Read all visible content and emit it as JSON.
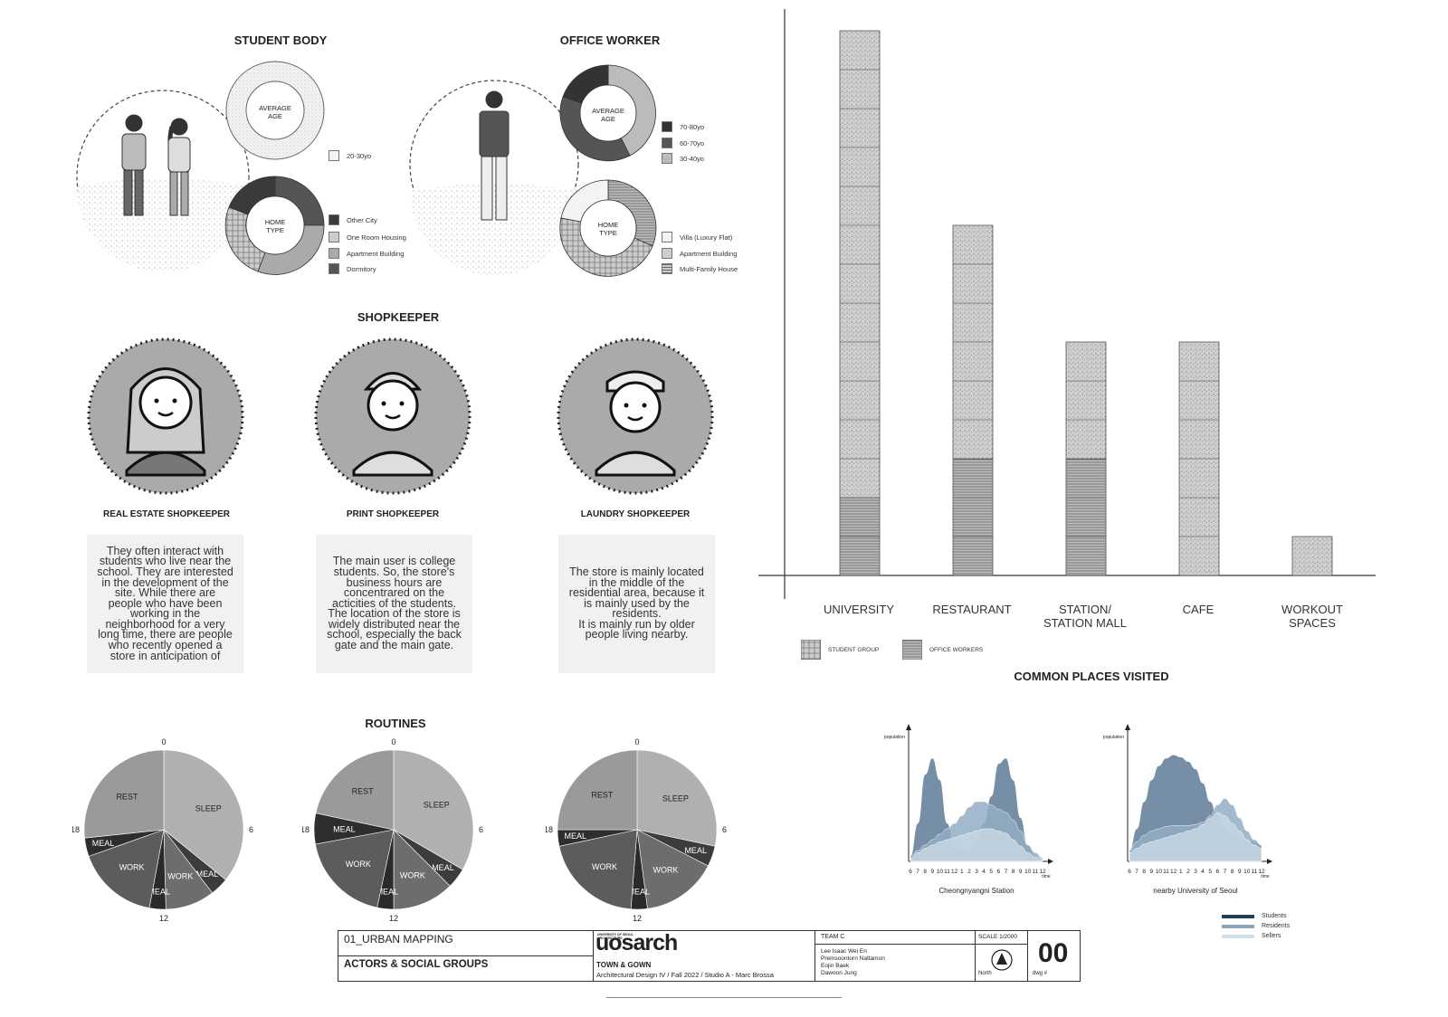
{
  "student_body": {
    "title": "STUDENT BODY",
    "avg_age_label": "AVERAGE AGE",
    "avg_age_legend": [
      "20-30yo"
    ],
    "home_type_label": "HOME TYPE",
    "home_type_legend": [
      "Other City",
      "One Room Housing",
      "Apartment Building",
      "Dormitory"
    ]
  },
  "office_worker": {
    "title": "OFFICE WORKER",
    "avg_age_label": "AVERAGE AGE",
    "avg_age_legend": [
      "70-80yo",
      "60-70yo",
      "30-40yo"
    ],
    "home_type_label": "HOME TYPE",
    "home_type_legend": [
      "Villa (Luxury Flat)",
      "Apartment Building",
      "Multi-Family House"
    ]
  },
  "shopkeeper": {
    "title": "SHOPKEEPER",
    "roles": [
      {
        "name": "REAL ESTATE SHOPKEEPER",
        "desc": "They often interact with\nstudents who live near the\nschool. They are interested\nin the development of the\nsite. While there are\npeople who have been\nworking in the\nneighborhood for a very\nlong time, there are people\nwho recently opened a\nstore in anticipation of"
      },
      {
        "name": "PRINT SHOPKEEPER",
        "desc": "The main user is college\nstudents. So, the store's\nbusiness hours are\nconcentrared on the\nacticities of the students.\nThe location of the store is\nwidely distributed near the\nschool, especially the back\ngate and the main gate."
      },
      {
        "name": "LAUNDRY SHOPKEEPER",
        "desc": "The store is mainly located\nin the middle of the\nresidential area, because it\nis mainly used by the\nresidents.\nIt is mainly run by older\npeople living nearby."
      }
    ]
  },
  "routines": {
    "title": "ROUTINES",
    "hour_labels": [
      "0",
      "6",
      "12",
      "18"
    ]
  },
  "chart_data": [
    {
      "type": "bar",
      "title": "COMMON PLACES VISITED",
      "categories": [
        "UNIVERSITY",
        "RESTAURANT",
        "STATION/\nSTATION MALL",
        "CAFE",
        "WORKOUT\nSPACES"
      ],
      "series": [
        {
          "name": "STUDENT GROUP",
          "values": [
            12,
            6,
            3,
            6,
            1
          ]
        },
        {
          "name": "OFFICE WORKERS",
          "values": [
            2,
            3,
            3,
            0,
            0
          ]
        }
      ],
      "stacked": true,
      "ylim": [
        0,
        15
      ]
    },
    {
      "type": "pie",
      "title": "",
      "labels": [
        "SLEEP",
        "MEAL",
        "WORK",
        "MEAL",
        "WORK",
        "MEAL",
        "REST"
      ],
      "values": [
        8.6,
        0.9,
        2.4,
        0.8,
        4.0,
        0.9,
        6.4
      ]
    },
    {
      "type": "pie",
      "title": "",
      "labels": [
        "SLEEP",
        "MEAL",
        "WORK",
        "MEAL",
        "WORK",
        "MEAL",
        "REST"
      ],
      "values": [
        8.0,
        1.0,
        3.0,
        0.8,
        4.5,
        1.5,
        5.2
      ]
    },
    {
      "type": "pie",
      "title": "",
      "labels": [
        "SLEEP",
        "MEAL",
        "WORK",
        "MEAL",
        "WORK",
        "MEAL",
        "REST"
      ],
      "values": [
        6.8,
        1.0,
        3.7,
        0.8,
        4.9,
        0.8,
        6.0
      ]
    },
    {
      "type": "area",
      "title": "Cheongnyangni Station",
      "xlabel": "time",
      "ylabel": "population",
      "categories": [
        "6",
        "7",
        "8",
        "9",
        "10",
        "11",
        "12",
        "1",
        "2",
        "3",
        "4",
        "5",
        "6",
        "7",
        "8",
        "9",
        "10",
        "11",
        "12"
      ],
      "series": [
        {
          "name": "Students",
          "values": [
            5,
            35,
            80,
            95,
            75,
            35,
            15,
            10,
            12,
            20,
            35,
            60,
            90,
            95,
            75,
            40,
            15,
            5,
            3
          ]
        },
        {
          "name": "Residents",
          "values": [
            5,
            10,
            15,
            20,
            25,
            30,
            35,
            42,
            50,
            55,
            55,
            52,
            48,
            45,
            38,
            28,
            15,
            8,
            3
          ]
        },
        {
          "name": "Sellers",
          "values": [
            3,
            8,
            12,
            15,
            18,
            20,
            22,
            24,
            26,
            28,
            30,
            30,
            28,
            26,
            20,
            14,
            8,
            4,
            2
          ]
        }
      ]
    },
    {
      "type": "area",
      "title": "nearby University of Seoul",
      "xlabel": "time",
      "ylabel": "population",
      "categories": [
        "6",
        "7",
        "8",
        "9",
        "10",
        "11",
        "12",
        "1",
        "2",
        "3",
        "4",
        "5",
        "6",
        "7",
        "8",
        "9",
        "10",
        "11",
        "12"
      ],
      "series": [
        {
          "name": "Students",
          "values": [
            10,
            30,
            55,
            75,
            88,
            95,
            98,
            96,
            92,
            85,
            72,
            55,
            42,
            32,
            26,
            22,
            20,
            18,
            15
          ]
        },
        {
          "name": "Residents",
          "values": [
            10,
            18,
            24,
            28,
            30,
            32,
            33,
            33,
            33,
            34,
            36,
            42,
            52,
            58,
            52,
            40,
            28,
            20,
            15
          ]
        },
        {
          "name": "Sellers",
          "values": [
            8,
            12,
            16,
            18,
            20,
            22,
            24,
            26,
            28,
            30,
            34,
            40,
            45,
            42,
            35,
            28,
            20,
            15,
            12
          ]
        }
      ]
    }
  ],
  "bar_legend": [
    "STUDENT GROUP",
    "OFFICE WORKERS"
  ],
  "area_legend": [
    "Students",
    "Residents",
    "Sellers"
  ],
  "area_colors": {
    "Students": "#5e7a96",
    "Residents": "#93adc4",
    "Sellers": "#c7d7e3"
  },
  "legend_colors": {
    "Students": "#1f3d5c",
    "Residents": "#8aa6bf",
    "Sellers": "#cfe0ea"
  },
  "title_block": {
    "sheet": "01_URBAN MAPPING",
    "subtitle": "ACTORS & SOCIAL GROUPS",
    "logo_small": "UNIVERSITY OF SEOUL ARCHITECTURE",
    "logo": "uosarch",
    "project": "TOWN & GOWN",
    "course": "Architectural Design IV / Fall 2022 /  Studio A - Marc Brossa",
    "team": "TEAM C",
    "members": [
      "Lee Isaac Wei En",
      "Premsoontorn Nattamon",
      "Eojin Baek",
      "Dawoon Jung"
    ],
    "scale": "SCALE 1/2000",
    "north": "North",
    "dwg_label": "dwg #",
    "dwg_number": "00"
  }
}
